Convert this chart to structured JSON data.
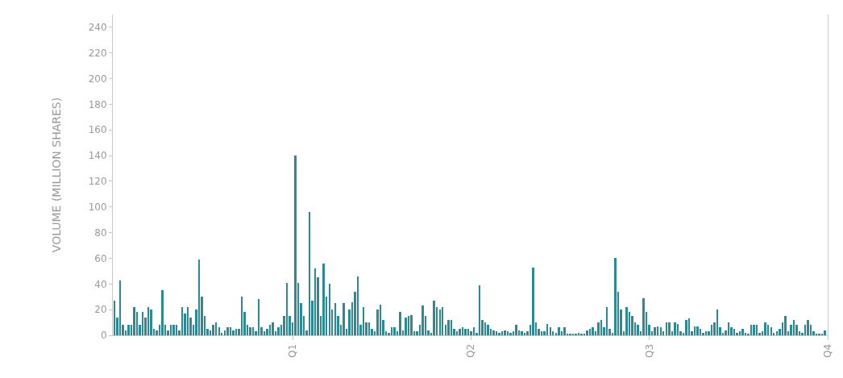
{
  "chart_data": {
    "type": "bar",
    "ylabel": "VOLUME (MILLION SHARES)",
    "categories": [
      null,
      null,
      null,
      null,
      null,
      null,
      null,
      null,
      null,
      null,
      null,
      null,
      null,
      null,
      null,
      null,
      null,
      null,
      null,
      null,
      null,
      null,
      null,
      null,
      null,
      null,
      null,
      null,
      null,
      null,
      null,
      null,
      null,
      null,
      null,
      null,
      null,
      null,
      null,
      null,
      null,
      null,
      null,
      null,
      null,
      null,
      null,
      null,
      null,
      null,
      null,
      null,
      null,
      null,
      null,
      null,
      null,
      null,
      null,
      null,
      null,
      null,
      null,
      "Q1",
      null,
      null,
      null,
      null,
      null,
      null,
      null,
      null,
      null,
      null,
      null,
      null,
      null,
      null,
      null,
      null,
      null,
      null,
      null,
      null,
      null,
      null,
      null,
      null,
      null,
      null,
      null,
      null,
      null,
      null,
      null,
      null,
      null,
      null,
      null,
      null,
      null,
      null,
      null,
      null,
      null,
      null,
      null,
      null,
      null,
      null,
      null,
      null,
      null,
      null,
      null,
      null,
      null,
      null,
      null,
      null,
      null,
      null,
      null,
      null,
      null,
      null,
      "Q2",
      null,
      null,
      null,
      null,
      null,
      null,
      null,
      null,
      null,
      null,
      null,
      null,
      null,
      null,
      null,
      null,
      null,
      null,
      null,
      null,
      null,
      null,
      null,
      null,
      null,
      null,
      null,
      null,
      null,
      null,
      null,
      null,
      null,
      null,
      null,
      null,
      null,
      null,
      null,
      null,
      null,
      null,
      null,
      null,
      null,
      null,
      null,
      null,
      null,
      null,
      null,
      null,
      null,
      null,
      null,
      null,
      null,
      null,
      null,
      null,
      null,
      null,
      "Q3",
      null,
      null,
      null,
      null,
      null,
      null,
      null,
      null,
      null,
      null,
      null,
      null,
      null,
      null,
      null,
      null,
      null,
      null,
      null,
      null,
      null,
      null,
      null,
      null,
      null,
      null,
      null,
      null,
      null,
      null,
      null,
      null,
      null,
      null,
      null,
      null,
      null,
      null,
      null,
      null,
      null,
      null,
      null,
      null,
      null,
      null,
      null,
      null,
      null,
      null,
      null,
      null,
      null,
      null,
      null,
      null,
      null,
      null,
      null,
      null,
      null,
      null,
      "Q4"
    ],
    "values": [
      27,
      14,
      43,
      8,
      4,
      8,
      8,
      22,
      18,
      8,
      18,
      14,
      22,
      20,
      5,
      4,
      8,
      35,
      8,
      4,
      8,
      8,
      8,
      4,
      22,
      17,
      22,
      14,
      8,
      20,
      59,
      30,
      15,
      5,
      4,
      8,
      10,
      6,
      2,
      4,
      6,
      6,
      4,
      5,
      5,
      30,
      18,
      8,
      6,
      6,
      3,
      28,
      6,
      3,
      5,
      8,
      10,
      3,
      6,
      8,
      15,
      41,
      15,
      10,
      140,
      41,
      25,
      15,
      4,
      96,
      27,
      52,
      45,
      15,
      56,
      30,
      40,
      20,
      25,
      15,
      8,
      25,
      5,
      20,
      26,
      34,
      46,
      8,
      22,
      10,
      10,
      5,
      3,
      20,
      24,
      12,
      3,
      2,
      6,
      6,
      3,
      18,
      4,
      14,
      15,
      16,
      3,
      3,
      8,
      23,
      15,
      4,
      2,
      27,
      22,
      20,
      22,
      8,
      12,
      12,
      5,
      3,
      5,
      6,
      5,
      5,
      3,
      6,
      2,
      39,
      12,
      10,
      8,
      5,
      4,
      3,
      2,
      3,
      4,
      3,
      2,
      3,
      8,
      4,
      3,
      2,
      3,
      8,
      53,
      10,
      5,
      3,
      3,
      9,
      6,
      3,
      2,
      6,
      3,
      6,
      1,
      1,
      1,
      1,
      2,
      1,
      1,
      4,
      5,
      6,
      3,
      10,
      12,
      6,
      22,
      5,
      2,
      60,
      34,
      20,
      3,
      22,
      18,
      15,
      10,
      8,
      3,
      29,
      18,
      8,
      3,
      6,
      7,
      6,
      3,
      10,
      10,
      3,
      10,
      9,
      3,
      2,
      12,
      13,
      3,
      7,
      7,
      5,
      2,
      3,
      3,
      8,
      10,
      20,
      6,
      2,
      4,
      10,
      6,
      5,
      2,
      3,
      5,
      2,
      1,
      8,
      8,
      8,
      2,
      3,
      10,
      8,
      6,
      2,
      3,
      5,
      10,
      15,
      3,
      8,
      12,
      8,
      3,
      2,
      8,
      12,
      8,
      3,
      1,
      1,
      1,
      4,
      null
    ],
    "color": "#2b8a93",
    "ylim": [
      0,
      250
    ],
    "yticks": [
      0,
      20,
      40,
      60,
      80,
      100,
      120,
      140,
      160,
      180,
      200,
      220,
      240
    ]
  }
}
